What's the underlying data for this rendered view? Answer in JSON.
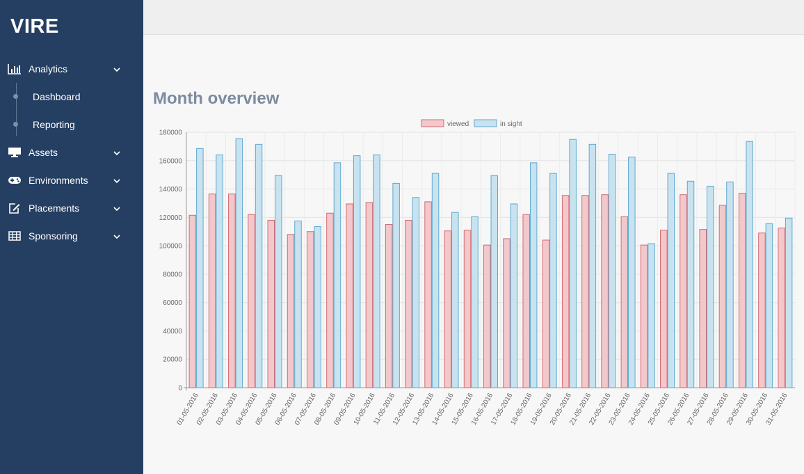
{
  "app": {
    "name": "VIRE"
  },
  "sidebar": {
    "items": [
      {
        "label": "Analytics",
        "icon": "bar-chart-icon"
      },
      {
        "label": "Assets",
        "icon": "monitor-icon"
      },
      {
        "label": "Environments",
        "icon": "gamepad-icon"
      },
      {
        "label": "Placements",
        "icon": "edit-icon"
      },
      {
        "label": "Sponsoring",
        "icon": "table-icon"
      }
    ],
    "analytics_sub": [
      {
        "label": "Dashboard"
      },
      {
        "label": "Reporting"
      }
    ]
  },
  "main": {
    "title": "Month overview"
  },
  "colors": {
    "sidebar_bg": "#253f62",
    "viewed_fill": "#f2c8ca",
    "viewed_stroke": "#d46a72",
    "insight_fill": "#c8e3ef",
    "insight_stroke": "#5fa9cf",
    "title": "#7c8ba0"
  },
  "chart_data": {
    "type": "bar",
    "title": "",
    "xlabel": "",
    "ylabel": "",
    "ylim": [
      0,
      180000
    ],
    "yticks": [
      "0",
      "20000",
      "40000",
      "60000",
      "80000",
      "100000",
      "120000",
      "140000",
      "160000",
      "180000"
    ],
    "legend": "top-center",
    "categories": [
      "01-05-2016",
      "02-05-2016",
      "03-05-2016",
      "04-05-2016",
      "05-05-2016",
      "06-05-2016",
      "07-05-2016",
      "08-05-2016",
      "09-05-2016",
      "10-05-2016",
      "11-05-2016",
      "12-05-2016",
      "13-05-2016",
      "14-05-2016",
      "15-05-2016",
      "16-05-2016",
      "17-05-2016",
      "18-05-2016",
      "19-05-2016",
      "20-05-2016",
      "21-05-2016",
      "22-05-2016",
      "23-05-2016",
      "24-05-2016",
      "25-05-2016",
      "26-05-2016",
      "27-05-2016",
      "28-05-2016",
      "29-05-2016",
      "30-05-2016",
      "31-05-2016"
    ],
    "series": [
      {
        "name": "viewed",
        "values": [
          121500,
          136500,
          136500,
          122000,
          118000,
          108000,
          110000,
          123000,
          129500,
          130500,
          115000,
          118000,
          131000,
          110500,
          111000,
          100500,
          105000,
          122000,
          104000,
          135500,
          135500,
          136000,
          120500,
          100500,
          111000,
          136000,
          111500,
          128500,
          137000,
          109000,
          112500
        ]
      },
      {
        "name": "in sight",
        "values": [
          168500,
          164000,
          175500,
          171500,
          149500,
          117500,
          113500,
          158500,
          163500,
          164000,
          144000,
          134000,
          151000,
          123500,
          120500,
          149500,
          129500,
          158500,
          151000,
          175000,
          171500,
          164500,
          162500,
          101500,
          151000,
          145500,
          142000,
          145000,
          173500,
          115500,
          119500
        ]
      }
    ]
  }
}
